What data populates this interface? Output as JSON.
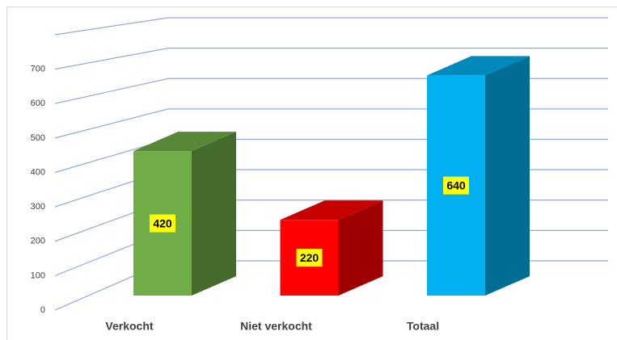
{
  "chart_data": {
    "type": "bar3d",
    "categories": [
      "Verkocht",
      "Niet verkocht",
      "Totaal"
    ],
    "values": [
      420,
      220,
      640
    ],
    "colors": [
      "#70ad47",
      "#ff0000",
      "#00b0f0"
    ],
    "ylim": [
      0,
      800
    ],
    "yticks": [
      0,
      100,
      200,
      300,
      400,
      500,
      600,
      700
    ],
    "grid": true
  }
}
